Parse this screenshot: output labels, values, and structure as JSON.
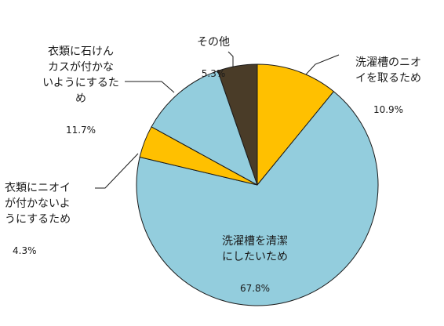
{
  "chart_data": {
    "type": "pie",
    "start_angle_deg": 0,
    "direction": "clockwise",
    "slices": [
      {
        "label": "洗濯槽のニオイを取るため",
        "label_lines": [
          "洗濯槽のニオ",
          "イを取るため"
        ],
        "value": 10.9,
        "value_label": "10.9%",
        "color": "#FFC000"
      },
      {
        "label": "洗濯槽を清潔にしたいため",
        "label_lines": [
          "洗濯槽を清潔",
          "にしたいため"
        ],
        "value": 67.8,
        "value_label": "67.8%",
        "color": "#93CDDD"
      },
      {
        "label": "衣類にニオイが付かないようにするため",
        "label_lines": [
          "衣類にニオイ",
          "が付かないよ",
          "うにするため"
        ],
        "value": 4.3,
        "value_label": "4.3%",
        "color": "#FFC000"
      },
      {
        "label": "衣類に石けんカスが付かないようにするため",
        "label_lines": [
          "衣類に石けん",
          "カスが付かな",
          "いようにするた",
          "め"
        ],
        "value": 11.7,
        "value_label": "11.7%",
        "color": "#93CDDD"
      },
      {
        "label": "その他",
        "label_lines": [
          "その他"
        ],
        "value": 5.3,
        "value_label": "5.3%",
        "color": "#4A3C28"
      }
    ]
  }
}
